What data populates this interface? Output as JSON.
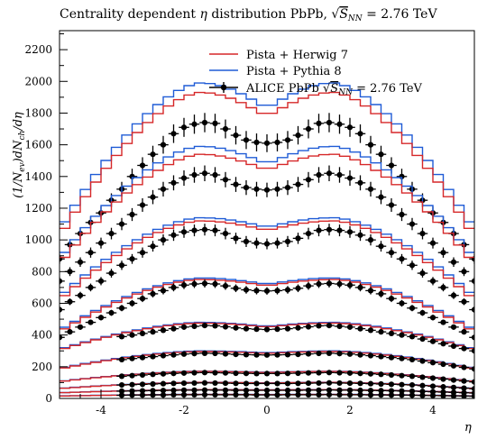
{
  "chart_data": {
    "type": "line",
    "title": "Centrality dependent η distribution PbPb, √S_NN = 2.76 TeV",
    "xlabel": "η",
    "ylabel": "(1/N_ev)dN_ch/dη",
    "xlim": [
      -5,
      5
    ],
    "ylim": [
      0,
      2320
    ],
    "x_ticks": [
      -4,
      -2,
      0,
      2,
      4
    ],
    "y_ticks": [
      0,
      200,
      400,
      600,
      800,
      1000,
      1200,
      1400,
      1600,
      1800,
      2000,
      2200
    ],
    "grid": false,
    "legend_position": "top-right",
    "legend": [
      "Pista + Herwig 7",
      "Pista + Pythia 8",
      "ALICE PbPb √S_NN = 2.76 TeV"
    ],
    "colors": {
      "herwig": "#d62728",
      "pythia": "#1f5bd6",
      "data": "#000000"
    },
    "series": [
      {
        "centrality_index": 1,
        "data_x": [
          -5.0,
          -4.75,
          -4.5,
          -4.25,
          -4.0,
          -3.75,
          -3.5,
          -3.25,
          -3.0,
          -2.75,
          -2.5,
          -2.25,
          -2.0,
          -1.75,
          -1.5,
          -1.25,
          -1.0,
          -0.75,
          -0.5,
          -0.25,
          0.0,
          0.25,
          0.5,
          0.75,
          1.0,
          1.25,
          1.5,
          1.75,
          2.0,
          2.25,
          2.5,
          2.75,
          3.0,
          3.25,
          3.5,
          3.75,
          4.0,
          4.25,
          4.5,
          4.75,
          5.0
        ],
        "data_y": [
          880,
          970,
          1040,
          1110,
          1170,
          1250,
          1320,
          1400,
          1470,
          1540,
          1600,
          1670,
          1710,
          1730,
          1740,
          1735,
          1700,
          1660,
          1630,
          1615,
          1610,
          1615,
          1630,
          1660,
          1700,
          1735,
          1740,
          1730,
          1710,
          1670,
          1600,
          1540,
          1470,
          1400,
          1320,
          1250,
          1170,
          1110,
          1040,
          970,
          880
        ],
        "pythia_peak": 1990,
        "pythia_center": 1830,
        "pythia_edge": 1060,
        "herwig_peak": 1930,
        "herwig_center": 1780,
        "herwig_edge": 1020
      },
      {
        "centrality_index": 2,
        "data_x": [
          -5.0,
          -4.75,
          -4.5,
          -4.25,
          -4.0,
          -3.75,
          -3.5,
          -3.25,
          -3.0,
          -2.75,
          -2.5,
          -2.25,
          -2.0,
          -1.75,
          -1.5,
          -1.25,
          -1.0,
          -0.75,
          -0.5,
          -0.25,
          0.0,
          0.25,
          0.5,
          0.75,
          1.0,
          1.25,
          1.5,
          1.75,
          2.0,
          2.25,
          2.5,
          2.75,
          3.0,
          3.25,
          3.5,
          3.75,
          4.0,
          4.25,
          4.5,
          4.75,
          5.0
        ],
        "data_y": [
          740,
          800,
          860,
          920,
          980,
          1040,
          1100,
          1160,
          1220,
          1270,
          1320,
          1360,
          1390,
          1410,
          1420,
          1410,
          1380,
          1350,
          1330,
          1320,
          1315,
          1320,
          1330,
          1350,
          1380,
          1410,
          1420,
          1410,
          1390,
          1360,
          1320,
          1270,
          1220,
          1160,
          1100,
          1040,
          980,
          920,
          860,
          800,
          740
        ],
        "pythia_peak": 1590,
        "pythia_center": 1480,
        "pythia_edge": 880,
        "herwig_peak": 1540,
        "herwig_center": 1440,
        "herwig_edge": 850
      },
      {
        "centrality_index": 3,
        "data_x": [
          -5.0,
          -4.75,
          -4.5,
          -4.25,
          -4.0,
          -3.75,
          -3.5,
          -3.25,
          -3.0,
          -2.75,
          -2.5,
          -2.25,
          -2.0,
          -1.75,
          -1.5,
          -1.25,
          -1.0,
          -0.75,
          -0.5,
          -0.25,
          0.0,
          0.25,
          0.5,
          0.75,
          1.0,
          1.25,
          1.5,
          1.75,
          2.0,
          2.25,
          2.5,
          2.75,
          3.0,
          3.25,
          3.5,
          3.75,
          4.0,
          4.25,
          4.5,
          4.75,
          5.0
        ],
        "data_y": [
          560,
          610,
          650,
          700,
          740,
          790,
          840,
          880,
          920,
          960,
          1000,
          1030,
          1050,
          1060,
          1065,
          1060,
          1040,
          1010,
          990,
          980,
          975,
          980,
          990,
          1010,
          1040,
          1060,
          1065,
          1060,
          1050,
          1030,
          1000,
          960,
          920,
          880,
          840,
          790,
          740,
          700,
          650,
          610,
          560
        ],
        "pythia_peak": 1140,
        "pythia_center": 1080,
        "pythia_edge": 640,
        "herwig_peak": 1120,
        "herwig_center": 1060,
        "herwig_edge": 620
      },
      {
        "centrality_index": 4,
        "data_x": [
          -5.0,
          -4.75,
          -4.5,
          -4.25,
          -4.0,
          -3.75,
          -3.5,
          -3.25,
          -3.0,
          -2.75,
          -2.5,
          -2.25,
          -2.0,
          -1.75,
          -1.5,
          -1.25,
          -1.0,
          -0.75,
          -0.5,
          -0.25,
          0.0,
          0.25,
          0.5,
          0.75,
          1.0,
          1.25,
          1.5,
          1.75,
          2.0,
          2.25,
          2.5,
          2.75,
          3.0,
          3.25,
          3.5,
          3.75,
          4.0,
          4.25,
          4.5,
          4.75,
          5.0
        ],
        "data_y": [
          385,
          420,
          450,
          480,
          510,
          540,
          570,
          600,
          630,
          660,
          680,
          700,
          715,
          722,
          725,
          722,
          710,
          695,
          685,
          680,
          678,
          680,
          685,
          695,
          710,
          722,
          725,
          722,
          715,
          700,
          680,
          660,
          630,
          600,
          570,
          540,
          510,
          480,
          450,
          420,
          385
        ],
        "pythia_peak": 760,
        "pythia_center": 720,
        "pythia_edge": 430,
        "herwig_peak": 750,
        "herwig_center": 710,
        "herwig_edge": 420
      },
      {
        "centrality_index": 5,
        "data_x": [
          -3.5,
          -3.25,
          -3.0,
          -2.75,
          -2.5,
          -2.25,
          -2.0,
          -1.75,
          -1.5,
          -1.25,
          -1.0,
          -0.75,
          -0.5,
          -0.25,
          0.0,
          0.25,
          0.5,
          0.75,
          1.0,
          1.25,
          1.5,
          1.75,
          2.0,
          2.25,
          2.5,
          2.75,
          3.0,
          3.25,
          3.5,
          3.75,
          4.0,
          4.25,
          4.5,
          4.75,
          5.0
        ],
        "data_y": [
          390,
          400,
          410,
          420,
          430,
          440,
          450,
          455,
          460,
          458,
          452,
          445,
          440,
          437,
          435,
          437,
          440,
          445,
          452,
          458,
          460,
          455,
          450,
          440,
          430,
          420,
          410,
          400,
          390,
          375,
          360,
          345,
          330,
          315,
          300
        ],
        "pythia_peak": 480,
        "pythia_center": 455,
        "pythia_edge": 310,
        "herwig_peak": 475,
        "herwig_center": 450,
        "herwig_edge": 305
      },
      {
        "centrality_index": 6,
        "data_x": [
          -3.5,
          -3.25,
          -3.0,
          -2.75,
          -2.5,
          -2.25,
          -2.0,
          -1.75,
          -1.5,
          -1.25,
          -1.0,
          -0.75,
          -0.5,
          -0.25,
          0.0,
          0.25,
          0.5,
          0.75,
          1.0,
          1.25,
          1.5,
          1.75,
          2.0,
          2.25,
          2.5,
          2.75,
          3.0,
          3.25,
          3.5,
          3.75,
          4.0,
          4.25,
          4.5,
          4.75,
          5.0
        ],
        "data_y": [
          245,
          252,
          258,
          264,
          270,
          275,
          280,
          283,
          285,
          284,
          281,
          278,
          276,
          275,
          274,
          275,
          276,
          278,
          281,
          284,
          285,
          283,
          280,
          275,
          270,
          264,
          258,
          252,
          245,
          236,
          226,
          216,
          206,
          196,
          186
        ],
        "pythia_peak": 300,
        "pythia_center": 288,
        "pythia_edge": 190,
        "herwig_peak": 296,
        "herwig_center": 284,
        "herwig_edge": 186
      },
      {
        "centrality_index": 7,
        "data_x": [
          -3.5,
          -3.25,
          -3.0,
          -2.75,
          -2.5,
          -2.25,
          -2.0,
          -1.75,
          -1.5,
          -1.25,
          -1.0,
          -0.75,
          -0.5,
          -0.25,
          0.0,
          0.25,
          0.5,
          0.75,
          1.0,
          1.25,
          1.5,
          1.75,
          2.0,
          2.25,
          2.5,
          2.75,
          3.0,
          3.25,
          3.5,
          3.75,
          4.0,
          4.25,
          4.5,
          4.75,
          5.0
        ],
        "data_y": [
          140,
          144,
          148,
          152,
          155,
          158,
          160,
          162,
          163,
          162,
          161,
          159,
          158,
          157,
          157,
          157,
          158,
          159,
          161,
          162,
          163,
          162,
          160,
          158,
          155,
          152,
          148,
          144,
          140,
          134,
          128,
          122,
          116,
          110,
          104
        ],
        "pythia_peak": 172,
        "pythia_center": 165,
        "pythia_edge": 108,
        "herwig_peak": 170,
        "herwig_center": 163,
        "herwig_edge": 106
      },
      {
        "centrality_index": 8,
        "data_x": [
          -3.5,
          -3.25,
          -3.0,
          -2.75,
          -2.5,
          -2.25,
          -2.0,
          -1.75,
          -1.5,
          -1.25,
          -1.0,
          -0.75,
          -0.5,
          -0.25,
          0.0,
          0.25,
          0.5,
          0.75,
          1.0,
          1.25,
          1.5,
          1.75,
          2.0,
          2.25,
          2.5,
          2.75,
          3.0,
          3.25,
          3.5,
          3.75,
          4.0,
          4.25,
          4.5,
          4.75,
          5.0
        ],
        "data_y": [
          85,
          87,
          89,
          91,
          93,
          95,
          96,
          97,
          98,
          97,
          96,
          95,
          94,
          94,
          94,
          94,
          94,
          95,
          96,
          97,
          98,
          97,
          96,
          95,
          93,
          91,
          89,
          87,
          85,
          81,
          77,
          73,
          69,
          65,
          61
        ],
        "pythia_peak": 102,
        "pythia_center": 98,
        "pythia_edge": 64,
        "herwig_peak": 101,
        "herwig_center": 97,
        "herwig_edge": 62
      },
      {
        "centrality_index": 9,
        "data_x": [
          -3.5,
          -3.25,
          -3.0,
          -2.75,
          -2.5,
          -2.25,
          -2.0,
          -1.75,
          -1.5,
          -1.25,
          -1.0,
          -0.75,
          -0.5,
          -0.25,
          0.0,
          0.25,
          0.5,
          0.75,
          1.0,
          1.25,
          1.5,
          1.75,
          2.0,
          2.25,
          2.5,
          2.75,
          3.0,
          3.25,
          3.5,
          3.75,
          4.0,
          4.25,
          4.5,
          4.75,
          5.0
        ],
        "data_y": [
          46,
          47,
          48,
          49,
          50,
          51,
          52,
          52,
          53,
          52,
          52,
          51,
          51,
          51,
          51,
          51,
          51,
          51,
          52,
          52,
          53,
          52,
          52,
          51,
          50,
          49,
          48,
          47,
          46,
          44,
          42,
          40,
          38,
          36,
          34
        ],
        "pythia_peak": 56,
        "pythia_center": 54,
        "pythia_edge": 36,
        "herwig_peak": 55,
        "herwig_center": 53,
        "herwig_edge": 35
      },
      {
        "centrality_index": 10,
        "data_x": [
          -3.5,
          -3.25,
          -3.0,
          -2.75,
          -2.5,
          -2.25,
          -2.0,
          -1.75,
          -1.5,
          -1.25,
          -1.0,
          -0.75,
          -0.5,
          -0.25,
          0.0,
          0.25,
          0.5,
          0.75,
          1.0,
          1.25,
          1.5,
          1.75,
          2.0,
          2.25,
          2.5,
          2.75,
          3.0,
          3.25,
          3.5,
          3.75,
          4.0,
          4.25,
          4.5,
          4.75,
          5.0
        ],
        "data_y": [
          20,
          21,
          21,
          22,
          22,
          23,
          23,
          23,
          24,
          23,
          23,
          23,
          23,
          22,
          22,
          22,
          23,
          23,
          23,
          23,
          24,
          23,
          23,
          23,
          22,
          22,
          21,
          21,
          20,
          19,
          18,
          17,
          16,
          15,
          14
        ],
        "pythia_peak": 26,
        "pythia_center": 25,
        "pythia_edge": 16,
        "herwig_peak": 25,
        "herwig_center": 24,
        "herwig_edge": 15
      }
    ]
  }
}
